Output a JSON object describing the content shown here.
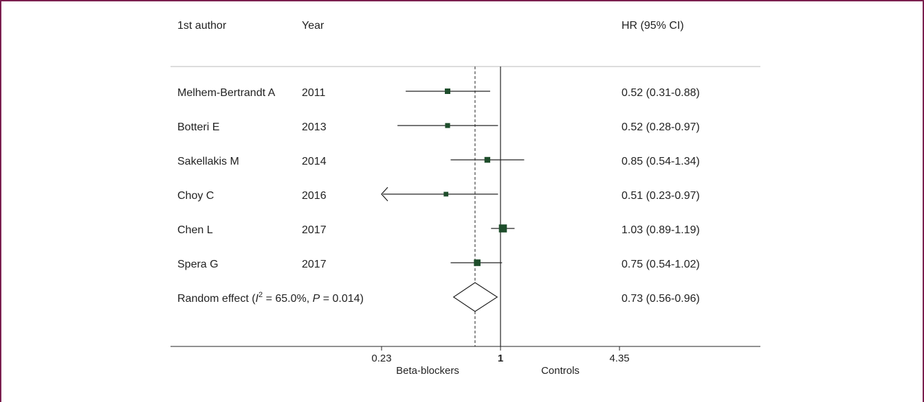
{
  "colors": {
    "frame": "#7a1f4e",
    "marker": "#1e4d2b",
    "line": "#222222",
    "separator": "#b8b8b8"
  },
  "headers": {
    "author": "1st author",
    "year": "Year",
    "effect": "HR (95% CI)"
  },
  "studies": [
    {
      "author": "Melhem-Bertrandt A",
      "year": "2011",
      "label": "0.52 (0.31-0.88)"
    },
    {
      "author": "Botteri E",
      "year": "2013",
      "label": "0.52 (0.28-0.97)"
    },
    {
      "author": "Sakellakis M",
      "year": "2014",
      "label": "0.85 (0.54-1.34)"
    },
    {
      "author": "Choy C",
      "year": "2016",
      "label": "0.51 (0.23-0.97)"
    },
    {
      "author": "Chen L",
      "year": "2017",
      "label": "1.03 (0.89-1.19)"
    },
    {
      "author": "Spera G",
      "year": "2017",
      "label": "0.75 (0.54-1.02)"
    }
  ],
  "pooled": {
    "label_prefix": "Random effect (",
    "i2_symbol": "I",
    "i2_sup": "2",
    "i2_text": " = 65.0%, ",
    "p_symbol": "P",
    "p_text": " = 0.014)",
    "label": "0.73 (0.56-0.96)"
  },
  "axis": {
    "ticks": [
      "0.23",
      "1",
      "4.35"
    ],
    "left_label": "Beta-blockers",
    "right_label": "Controls"
  },
  "chart_data": {
    "type": "forest",
    "x_scale": "log",
    "x_ticks": [
      0.23,
      1,
      4.35
    ],
    "xlim": [
      0.23,
      4.35
    ],
    "reference_line": 1,
    "pooled_line": 0.73,
    "rows": [
      {
        "study": "Melhem-Bertrandt A",
        "year": 2011,
        "hr": 0.52,
        "lower": 0.31,
        "upper": 0.88,
        "weight": 1.0
      },
      {
        "study": "Botteri E",
        "year": 2013,
        "hr": 0.52,
        "lower": 0.28,
        "upper": 0.97,
        "weight": 0.9
      },
      {
        "study": "Sakellakis M",
        "year": 2014,
        "hr": 0.85,
        "lower": 0.54,
        "upper": 1.34,
        "weight": 1.05
      },
      {
        "study": "Choy C",
        "year": 2016,
        "hr": 0.51,
        "lower": 0.23,
        "upper": 0.97,
        "weight": 0.85,
        "lower_clipped": true
      },
      {
        "study": "Chen L",
        "year": 2017,
        "hr": 1.03,
        "lower": 0.89,
        "upper": 1.19,
        "weight": 1.45
      },
      {
        "study": "Spera G",
        "year": 2017,
        "hr": 0.75,
        "lower": 0.54,
        "upper": 1.02,
        "weight": 1.2
      }
    ],
    "pooled": {
      "hr": 0.73,
      "lower": 0.56,
      "upper": 0.96
    }
  }
}
